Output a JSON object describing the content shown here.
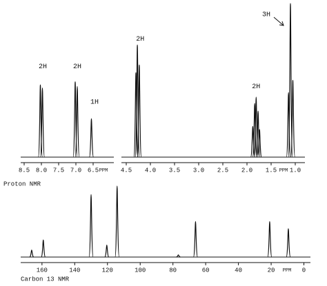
{
  "chart_data": [
    {
      "type": "spectrum",
      "title": "Proton NMR",
      "xlabel": "PPM",
      "xlim": [
        8.6,
        5.9
      ],
      "ylim": [
        0,
        100
      ],
      "xticks": [
        8.5,
        {
          "value": 8,
          "label": "8.0"
        },
        7.5,
        {
          "value": 7,
          "label": "7.0"
        },
        6.5
      ],
      "x": [
        8.03,
        7.97,
        7.02,
        6.96,
        6.55
      ],
      "values": [
        47,
        45,
        49,
        46,
        25
      ],
      "color": "#111111",
      "annotations": [
        {
          "text": "2H",
          "x": 7.96,
          "y": 59
        },
        {
          "text": "2H",
          "x": 6.96,
          "y": 59
        },
        {
          "text": "1H",
          "x": 6.46,
          "y": 36
        }
      ]
    },
    {
      "type": "spectrum",
      "xlabel": "PPM",
      "xlim": [
        4.6,
        0.8
      ],
      "ylim": [
        0,
        100
      ],
      "xticks": [
        4.5,
        {
          "value": 4,
          "label": "4.0"
        },
        3.5,
        {
          "value": 3,
          "label": "3.0"
        },
        2.5,
        {
          "value": 2,
          "label": "2.0"
        },
        1.5,
        {
          "value": 1,
          "label": "1.0"
        }
      ],
      "x": [
        4.3,
        4.27,
        4.23,
        1.88,
        1.84,
        1.81,
        1.77,
        1.74,
        1.14,
        1.1,
        1.05
      ],
      "values": [
        55,
        73,
        60,
        20,
        35,
        39,
        30,
        18,
        42,
        100,
        50
      ],
      "color": "#111111",
      "annotations": [
        {
          "text": "2H",
          "x": 4.21,
          "y": 77
        },
        {
          "text": "2H",
          "x": 1.81,
          "y": 46
        },
        {
          "text": "3H",
          "x": 1.6,
          "y": 93
        }
      ]
    },
    {
      "type": "spectrum",
      "title": "Carbon 13 NMR",
      "xlabel": "PPM",
      "xlim": [
        173,
        -4
      ],
      "ylim": [
        0,
        100
      ],
      "xticks": [
        160,
        140,
        120,
        100,
        80,
        60,
        40,
        20,
        0
      ],
      "x": [
        166.3,
        159.2,
        130,
        120.4,
        114.1,
        76.7,
        66.2,
        20.9,
        9.5
      ],
      "values": [
        10,
        24,
        88,
        17,
        100,
        3,
        50,
        50,
        40
      ],
      "color": "#111111"
    }
  ]
}
